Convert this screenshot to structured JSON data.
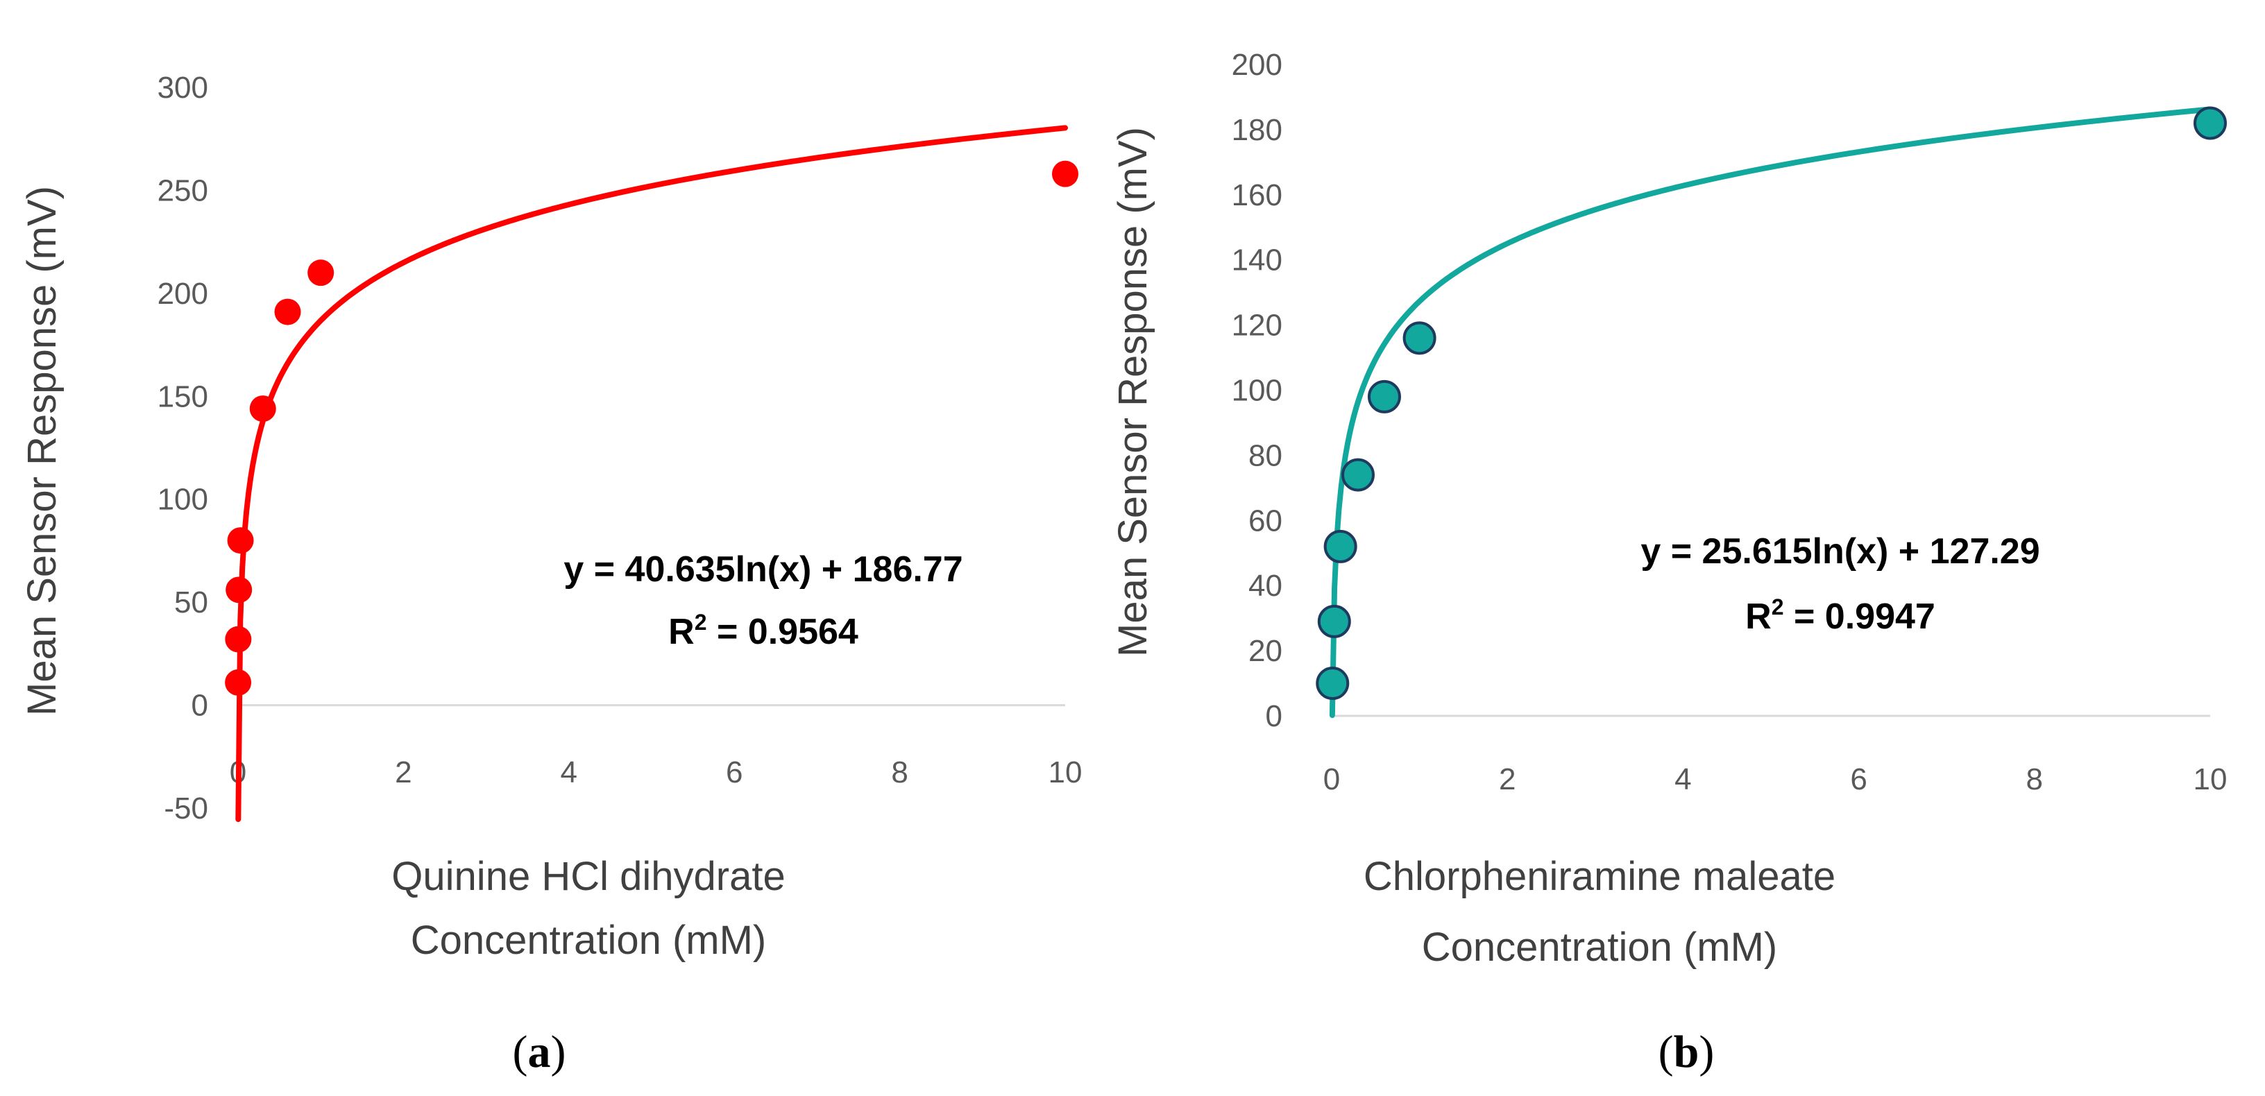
{
  "colors": {
    "chart_a": "#ff0000",
    "chart_b": "#13a89e",
    "marker_b_edge": "#1f3a5f",
    "tick_text": "#595959",
    "axis_text": "#404040",
    "axis_line": "#d9d9d9"
  },
  "chart_data": [
    {
      "id": "a",
      "type": "scatter",
      "panel_label": "a",
      "title": "",
      "xlabel_lines": [
        "Quinine HCl dihydrate",
        "Concentration (mM)"
      ],
      "ylabel": "Mean Sensor Response (mV)",
      "xlim": [
        0,
        10
      ],
      "ylim": [
        -50,
        300
      ],
      "xticks": [
        0,
        2,
        4,
        6,
        8,
        10
      ],
      "yticks": [
        -50,
        0,
        50,
        100,
        150,
        200,
        250,
        300
      ],
      "series": [
        {
          "name": "Quinine HCl dihydrate",
          "x": [
            0.001,
            0.003,
            0.01,
            0.03,
            0.3,
            0.6,
            1,
            10
          ],
          "y": [
            11,
            32,
            56,
            80,
            144,
            191,
            210,
            258
          ]
        }
      ],
      "trendline": {
        "type": "log",
        "a": 40.635,
        "b": 186.77,
        "x_start": 0.00258,
        "x_end": 10
      },
      "equation_text": "y = 40.635ln(x) + 186.77",
      "r2_label": "R",
      "r2_sup": "2",
      "r2_value": " = 0.9564"
    },
    {
      "id": "b",
      "type": "scatter",
      "panel_label": "b",
      "title": "",
      "xlabel_lines": [
        "Chlorpheniramine maleate",
        "Concentration (mM)"
      ],
      "ylabel": "Mean Sensor Response (mV)",
      "xlim": [
        0,
        10
      ],
      "ylim": [
        0,
        200
      ],
      "xticks": [
        0,
        2,
        4,
        6,
        8,
        10
      ],
      "yticks": [
        0,
        20,
        40,
        60,
        80,
        100,
        120,
        140,
        160,
        180,
        200
      ],
      "series": [
        {
          "name": "Chlorpheniramine maleate",
          "x": [
            0.01,
            0.03,
            0.1,
            0.3,
            0.6,
            1,
            10
          ],
          "y": [
            10,
            29,
            52,
            74,
            98,
            116,
            182
          ]
        }
      ],
      "trendline": {
        "type": "log",
        "a": 25.615,
        "b": 127.29,
        "x_start": 0.007,
        "x_end": 10
      },
      "equation_text": "y = 25.615ln(x) + 127.29",
      "r2_label": "R",
      "r2_sup": "2",
      "r2_value": " = 0.9947"
    }
  ]
}
